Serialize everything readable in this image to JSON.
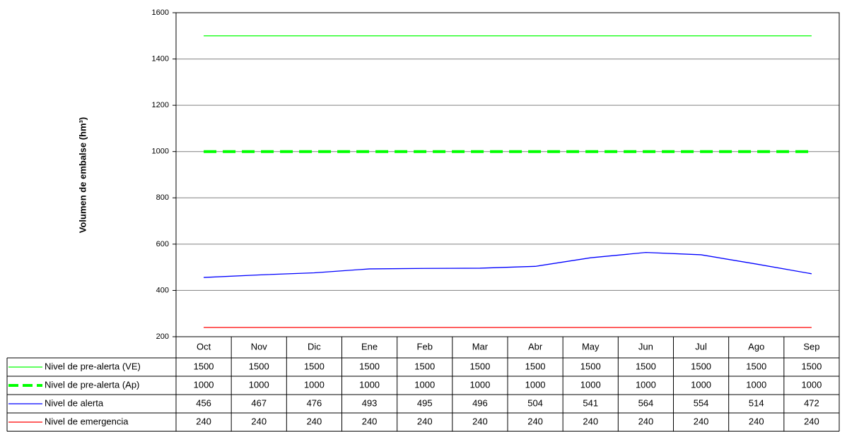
{
  "chart_data": {
    "type": "line",
    "y_label": "Volumen de embalse (hm³)",
    "categories": [
      "Oct",
      "Nov",
      "Dic",
      "Ene",
      "Feb",
      "Mar",
      "Abr",
      "May",
      "Jun",
      "Jul",
      "Ago",
      "Sep"
    ],
    "series": [
      {
        "name": "Nivel de pre-alerta (VE)",
        "color": "#00ff00",
        "values": [
          1500,
          1500,
          1500,
          1500,
          1500,
          1500,
          1500,
          1500,
          1500,
          1500,
          1500,
          1500
        ]
      },
      {
        "name": "Nivel de pre-alerta (Ap)",
        "color": "#00ff00",
        "dashed": true,
        "values": [
          1000,
          1000,
          1000,
          1000,
          1000,
          1000,
          1000,
          1000,
          1000,
          1000,
          1000,
          1000
        ]
      },
      {
        "name": "Nivel de alerta",
        "color": "#0000ff",
        "values": [
          456,
          467,
          476,
          493,
          495,
          496,
          504,
          541,
          564,
          554,
          514,
          472
        ]
      },
      {
        "name": "Nivel de emergencia",
        "color": "#ff0000",
        "values": [
          240,
          240,
          240,
          240,
          240,
          240,
          240,
          240,
          240,
          240,
          240,
          240
        ]
      }
    ],
    "ylim": [
      200,
      1600
    ],
    "yticks": [
      200,
      400,
      600,
      800,
      1000,
      1200,
      1400,
      1600
    ],
    "grid": true
  }
}
